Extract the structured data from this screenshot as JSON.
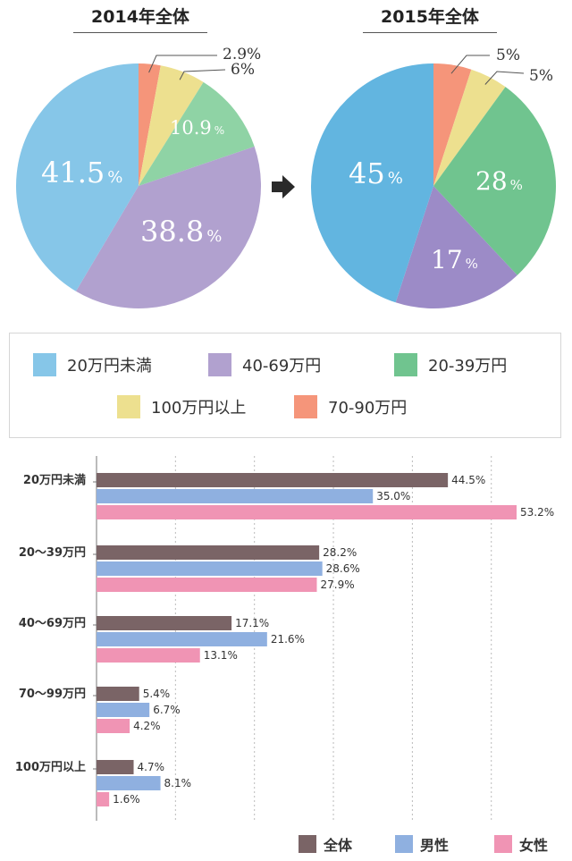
{
  "chart_data": [
    {
      "type": "pie",
      "title": "2014年全体",
      "slices": [
        {
          "label": "70-90万円",
          "value": 2.9,
          "display": "2.9%",
          "color": "#f5957a"
        },
        {
          "label": "100万円以上",
          "value": 6,
          "display": "6%",
          "color": "#ede08f"
        },
        {
          "label": "20-39万円",
          "value": 10.9,
          "display": "10.9",
          "color": "#8fd3a5"
        },
        {
          "label": "40-69万円",
          "value": 38.8,
          "display": "38.8",
          "color": "#b1a1cf"
        },
        {
          "label": "20万円未満",
          "value": 41.5,
          "display": "41.5",
          "color": "#86c6e8"
        }
      ]
    },
    {
      "type": "pie",
      "title": "2015年全体",
      "slices": [
        {
          "label": "70-90万円",
          "value": 5,
          "display": "5%",
          "color": "#f5957a"
        },
        {
          "label": "100万円以上",
          "value": 5,
          "display": "5%",
          "color": "#ede08f"
        },
        {
          "label": "20-39万円",
          "value": 28,
          "display": "28",
          "color": "#70c48f"
        },
        {
          "label": "40-69万円",
          "value": 17,
          "display": "17",
          "color": "#9c8bc7"
        },
        {
          "label": "20万円未満",
          "value": 45,
          "display": "45",
          "color": "#62b5e0"
        }
      ]
    },
    {
      "type": "bar",
      "orientation": "horizontal",
      "categories": [
        "20万円未満",
        "20〜39万円",
        "40〜69万円",
        "70〜99万円",
        "100万円以上"
      ],
      "series": [
        {
          "name": "全体",
          "color": "#7a6466",
          "values": [
            44.5,
            28.2,
            17.1,
            5.4,
            4.7
          ],
          "labels": [
            "44.5%",
            "28.2%",
            "17.1%",
            "5.4%",
            "4.7%"
          ]
        },
        {
          "name": "男性",
          "color": "#8fb0e0",
          "values": [
            35.0,
            28.6,
            21.6,
            6.7,
            8.1
          ],
          "labels": [
            "35.0%",
            "28.6%",
            "21.6%",
            "6.7%",
            "8.1%"
          ]
        },
        {
          "name": "女性",
          "color": "#f094b4",
          "values": [
            53.2,
            27.9,
            13.1,
            4.2,
            1.6
          ],
          "labels": [
            "53.2%",
            "27.9%",
            "13.1%",
            "4.2%",
            "1.6%"
          ]
        }
      ],
      "xlim": [
        0,
        60
      ],
      "grid": true
    }
  ],
  "legend": {
    "items": [
      {
        "label": "20万円未満",
        "color": "#86c6e8"
      },
      {
        "label": "40-69万円",
        "color": "#b1a1cf"
      },
      {
        "label": "20-39万円",
        "color": "#70c48f"
      },
      {
        "label": "100万円以上",
        "color": "#ede08f"
      },
      {
        "label": "70-90万円",
        "color": "#f5957a"
      }
    ]
  },
  "percent_sign": "%",
  "arrow_icon": "arrow-right-icon"
}
